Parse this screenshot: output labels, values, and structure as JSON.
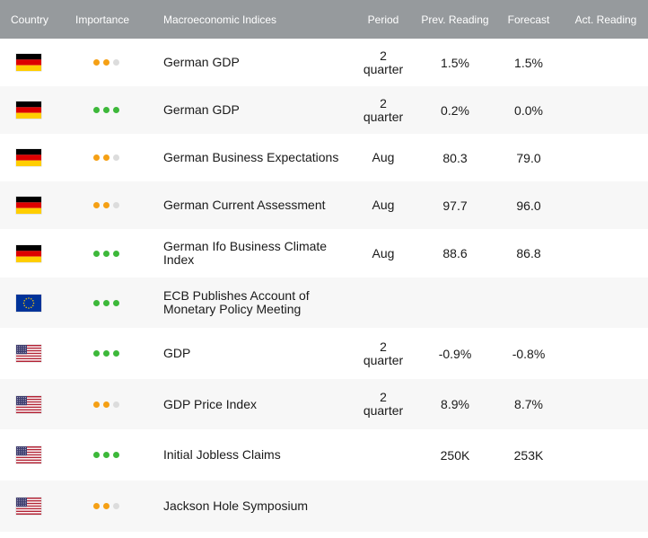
{
  "colors": {
    "header_bg": "#969a9d",
    "row_alt_bg": "#f7f7f7",
    "dot_orange": "#f5a015",
    "dot_green": "#3db83a",
    "dot_inactive": "#dcdcdc"
  },
  "header": {
    "country": "Country",
    "importance": "Importance",
    "indices": "Macroeconomic Indices",
    "period": "Period",
    "prev_reading": "Prev. Reading",
    "forecast": "Forecast",
    "actual": "Act. Reading"
  },
  "rows": [
    {
      "flag": "germany-flag-icon",
      "importance": 2,
      "name": "German GDP",
      "period": "2 quarter",
      "prev": "1.5%",
      "forecast": "1.5%",
      "actual": ""
    },
    {
      "flag": "germany-flag-icon",
      "importance": 3,
      "name": "German GDP",
      "period": "2 quarter",
      "prev": "0.2%",
      "forecast": "0.0%",
      "actual": ""
    },
    {
      "flag": "germany-flag-icon",
      "importance": 2,
      "name": "German Business Expectations",
      "period": "Aug",
      "prev": "80.3",
      "forecast": "79.0",
      "actual": ""
    },
    {
      "flag": "germany-flag-icon",
      "importance": 2,
      "name": "German Current Assessment",
      "period": "Aug",
      "prev": "97.7",
      "forecast": "96.0",
      "actual": ""
    },
    {
      "flag": "germany-flag-icon",
      "importance": 3,
      "name": "German Ifo Business Climate Index",
      "period": "Aug",
      "prev": "88.6",
      "forecast": "86.8",
      "actual": ""
    },
    {
      "flag": "eu-flag-icon",
      "importance": 3,
      "name": "ECB Publishes Account of Monetary Policy Meeting",
      "period": "",
      "prev": "",
      "forecast": "",
      "actual": ""
    },
    {
      "flag": "usa-flag-icon",
      "importance": 3,
      "name": "GDP",
      "period": "2 quarter",
      "prev": "-0.9%",
      "forecast": "-0.8%",
      "actual": ""
    },
    {
      "flag": "usa-flag-icon",
      "importance": 2,
      "name": "GDP Price Index",
      "period": "2 quarter",
      "prev": "8.9%",
      "forecast": "8.7%",
      "actual": ""
    },
    {
      "flag": "usa-flag-icon",
      "importance": 3,
      "name": "Initial Jobless Claims",
      "period": "",
      "prev": "250K",
      "forecast": "253K",
      "actual": ""
    },
    {
      "flag": "usa-flag-icon",
      "importance": 2,
      "name": "Jackson Hole Symposium",
      "period": "",
      "prev": "",
      "forecast": "",
      "actual": ""
    }
  ]
}
